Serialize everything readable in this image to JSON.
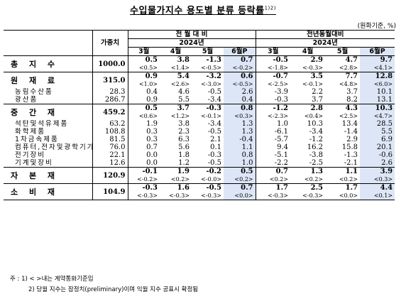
{
  "title": "수입물가지수 용도별 분류 등락률",
  "title_sup": "1)2)",
  "unit": "(원화기준, %)",
  "header": {
    "weight": "가중치",
    "group_prev_month": "전 월 대 비",
    "group_prev_year": "전년동월대비",
    "year": "2024년",
    "months": [
      "3월",
      "4월",
      "5월",
      "6월P"
    ]
  },
  "rows": [
    {
      "type": "main",
      "label": "총 지 수",
      "weight": "1000.0",
      "mom": [
        "0.5",
        "3.8",
        "-1.3",
        "0.7"
      ],
      "yoy": [
        "-0.5",
        "2.9",
        "4.7",
        "9.7"
      ],
      "mom_c": [
        "<0.5>",
        "<1.4>",
        "<-0.5>",
        "<-0.2>"
      ],
      "yoy_c": [
        "<-1.8>",
        "<-0.3>",
        "<2.8>",
        "<4.1>"
      ]
    },
    {
      "type": "main",
      "label": "원 재 료",
      "weight": "315.0",
      "mom": [
        "0.9",
        "5.4",
        "-3.2",
        "0.6"
      ],
      "yoy": [
        "-0.7",
        "3.5",
        "7.7",
        "12.8"
      ],
      "mom_c": [
        "<1.0>",
        "<2.6>",
        "<-3.0>",
        "<-0.5>"
      ],
      "yoy_c": [
        "<-2.5>",
        "<-0.1>",
        "<4.8>",
        "<6.0>"
      ]
    },
    {
      "type": "sub",
      "label": "농림수산품",
      "weight": "28.3",
      "mom": [
        "0.4",
        "4.6",
        "-0.5",
        "2.6"
      ],
      "yoy": [
        "-3.9",
        "2.2",
        "3.7",
        "10.1"
      ]
    },
    {
      "type": "sub",
      "label": "광산품",
      "weight": "286.7",
      "mom": [
        "0.9",
        "5.5",
        "-3.4",
        "0.4"
      ],
      "yoy": [
        "-0.3",
        "3.7",
        "8.2",
        "13.1"
      ]
    },
    {
      "type": "main",
      "label": "중 간 재",
      "weight": "459.2",
      "mom": [
        "0.5",
        "3.7",
        "-0.3",
        "0.8"
      ],
      "yoy": [
        "-1.2",
        "2.8",
        "4.3",
        "10.3"
      ],
      "mom_c": [
        "<0.6>",
        "<1.2>",
        "<-0.1>",
        "<0.3>"
      ],
      "yoy_c": [
        "<-2.3>",
        "<0.4>",
        "<2.5>",
        "<4.7>"
      ]
    },
    {
      "type": "sub",
      "label": "석탄및석유제품",
      "weight": "63.2",
      "mom": [
        "1.9",
        "3.8",
        "-3.4",
        "1.3"
      ],
      "yoy": [
        "1.0",
        "10.3",
        "13.4",
        "28.5"
      ]
    },
    {
      "type": "sub",
      "label": "화학제품",
      "weight": "108.8",
      "mom": [
        "0.3",
        "2.3",
        "-0.5",
        "1.3"
      ],
      "yoy": [
        "-6.1",
        "-3.4",
        "-1.4",
        "5.5"
      ]
    },
    {
      "type": "sub",
      "label": "1차금속제품",
      "weight": "81.5",
      "mom": [
        "0.3",
        "6.3",
        "2.1",
        "-0.4"
      ],
      "yoy": [
        "-5.7",
        "-1.2",
        "2.9",
        "6.9"
      ]
    },
    {
      "type": "sub",
      "label": "컴퓨터,전자및광학기기",
      "weight": "76.0",
      "mom": [
        "0.7",
        "5.6",
        "0.1",
        "1.1"
      ],
      "yoy": [
        "9.4",
        "16.2",
        "15.8",
        "20.1"
      ]
    },
    {
      "type": "sub",
      "label": "전기장비",
      "weight": "22.1",
      "mom": [
        "0.0",
        "1.8",
        "-0.3",
        "0.8"
      ],
      "yoy": [
        "-5.1",
        "-3.8",
        "-1.3",
        "-0.6"
      ]
    },
    {
      "type": "sub",
      "label": "기계및장비",
      "weight": "12.6",
      "mom": [
        "0.0",
        "1.2",
        "-0.5",
        "1.0"
      ],
      "yoy": [
        "-2.2",
        "-2.5",
        "-2.1",
        "2.6"
      ]
    },
    {
      "type": "main",
      "label": "자 본 재",
      "weight": "120.9",
      "mom": [
        "-0.1",
        "1.9",
        "-0.2",
        "0.5"
      ],
      "yoy": [
        "0.7",
        "1.3",
        "1.1",
        "3.9"
      ],
      "mom_c": [
        "<-0.2>",
        "<0.2>",
        "<-0.0>",
        "<0.2>"
      ],
      "yoy_c": [
        "<0.2>",
        "<0.2>",
        "<0.2>",
        "<0.3>"
      ]
    },
    {
      "type": "main",
      "label": "소 비 재",
      "weight": "104.9",
      "mom": [
        "-0.3",
        "1.6",
        "-0.5",
        "0.7"
      ],
      "yoy": [
        "1.7",
        "2.5",
        "1.7",
        "4.4"
      ],
      "mom_c": [
        "<-0.3>",
        "<-0.3>",
        "<-0.3>",
        "<0.0>"
      ],
      "yoy_c": [
        "<-0.3>",
        "<-0.3>",
        "<0.0>",
        "<0.1>"
      ]
    }
  ],
  "footnotes": [
    "주 : 1) < >내는 계약통화기준임",
    "2) 당월 지수는 잠정치(preliminary)이며 익월 지수 공표시 확정됨"
  ]
}
